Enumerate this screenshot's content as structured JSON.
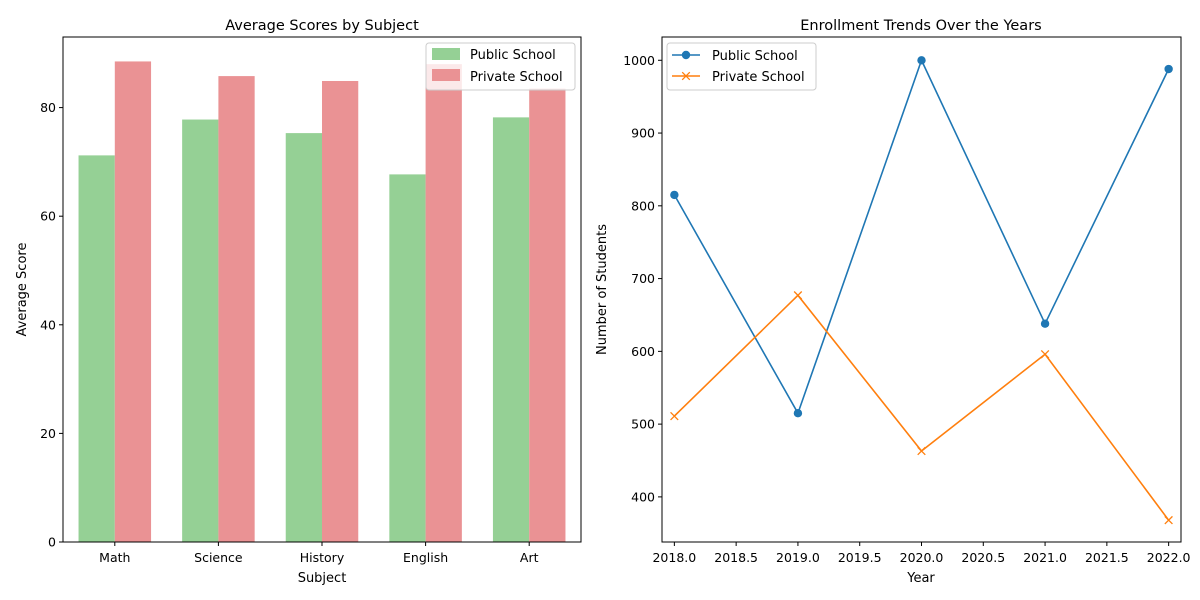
{
  "chart_data": [
    {
      "type": "bar",
      "title": "Average Scores by Subject",
      "xlabel": "Subject",
      "ylabel": "Average Score",
      "categories": [
        "Math",
        "Science",
        "History",
        "English",
        "Art"
      ],
      "ylim": [
        0,
        93
      ],
      "yticks": [
        0,
        20,
        40,
        60,
        80
      ],
      "legend_position": "top-right",
      "series": [
        {
          "name": "Public School",
          "values": [
            71.2,
            77.8,
            75.3,
            67.7,
            78.2
          ],
          "color": "#95d095"
        },
        {
          "name": "Private School",
          "values": [
            88.5,
            85.8,
            84.9,
            88.0,
            83.5
          ],
          "color": "#ea9294"
        }
      ]
    },
    {
      "type": "line",
      "title": "Enrollment Trends Over the Years",
      "xlabel": "Year",
      "ylabel": "Number of Students",
      "x": [
        2018,
        2019,
        2020,
        2021,
        2022
      ],
      "xlim": [
        2017.9,
        2022.1
      ],
      "ylim": [
        338,
        1032
      ],
      "xticks": [
        "2018.0",
        "2018.5",
        "2019.0",
        "2019.5",
        "2020.0",
        "2020.5",
        "2021.0",
        "2021.5",
        "2022.0"
      ],
      "yticks": [
        400,
        500,
        600,
        700,
        800,
        900,
        1000
      ],
      "legend_position": "top-left",
      "series": [
        {
          "name": "Public School",
          "values": [
            815,
            515,
            1000,
            638,
            988
          ],
          "color": "#1f77b4",
          "marker": "circle"
        },
        {
          "name": "Private School",
          "values": [
            511,
            677,
            463,
            596,
            368
          ],
          "color": "#ff7f0e",
          "marker": "x"
        }
      ]
    }
  ]
}
